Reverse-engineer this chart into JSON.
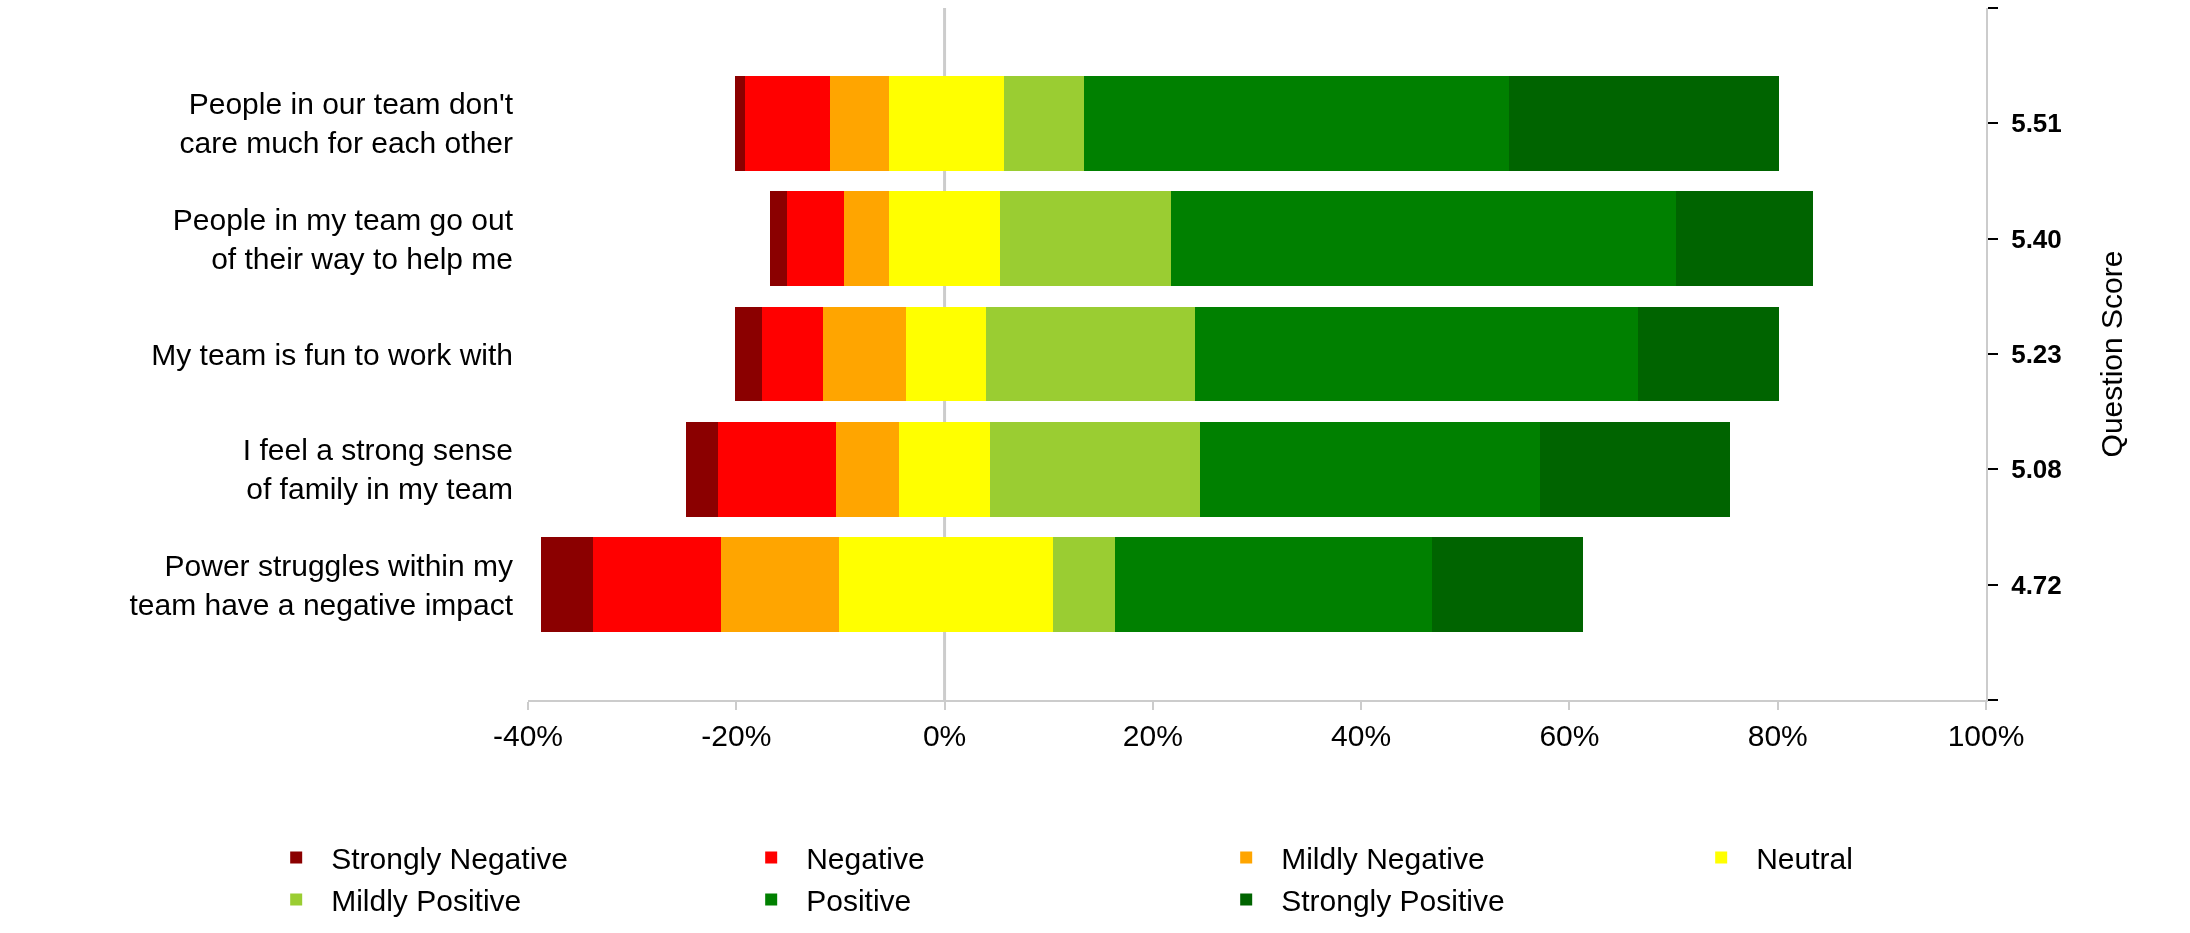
{
  "chart_data": {
    "type": "bar",
    "orientation": "horizontal",
    "categories": [
      "People in our team don't care much for each other",
      "People in my team go out of their way to help me",
      "My team is fun to work with",
      "I feel a strong sense of family in my team",
      "Power struggles within my team have a negative impact"
    ],
    "series": [
      {
        "name": "Strongly Negative",
        "color": "#8b0000",
        "base": [
          -20.1,
          -16.8,
          -20.1,
          -24.8,
          -38.8
        ],
        "values": [
          0.9,
          1.7,
          2.6,
          3.0,
          5.0
        ]
      },
      {
        "name": "Negative",
        "color": "#ff0000",
        "base": [
          -19.2,
          -15.1,
          -17.5,
          -21.8,
          -33.8
        ],
        "values": [
          8.2,
          5.4,
          5.8,
          11.4,
          12.3
        ]
      },
      {
        "name": "Mildly Negative",
        "color": "#ffa500",
        "base": [
          -11.0,
          -9.7,
          -11.7,
          -10.4,
          -21.5
        ],
        "values": [
          5.7,
          4.4,
          8.0,
          6.0,
          11.4
        ]
      },
      {
        "name": "Neutral",
        "color": "#ffff00",
        "base": [
          -5.3,
          -5.3,
          -3.7,
          -4.4,
          -10.1
        ],
        "values": [
          11.0,
          10.6,
          7.7,
          8.8,
          20.5
        ]
      },
      {
        "name": "Mildly Positive",
        "color": "#9acd32",
        "base": [
          5.7,
          5.3,
          4.0,
          4.4,
          10.4
        ],
        "values": [
          7.7,
          16.4,
          20.0,
          20.1,
          6.0
        ]
      },
      {
        "name": "Positive",
        "color": "#008000",
        "base": [
          13.4,
          21.7,
          24.0,
          24.5,
          16.4
        ],
        "values": [
          40.8,
          48.5,
          42.6,
          32.7,
          30.4
        ]
      },
      {
        "name": "Strongly Positive",
        "color": "#006400",
        "base": [
          54.2,
          70.2,
          66.6,
          57.2,
          46.8
        ],
        "values": [
          25.9,
          13.2,
          13.5,
          18.2,
          14.5
        ]
      }
    ],
    "xlim": [
      -40,
      100
    ],
    "xticks": [
      {
        "value": -40,
        "label": "-40%"
      },
      {
        "value": -20,
        "label": "-20%"
      },
      {
        "value": 0,
        "label": "0%"
      },
      {
        "value": 20,
        "label": "20%"
      },
      {
        "value": 40,
        "label": "40%"
      },
      {
        "value": 60,
        "label": "60%"
      },
      {
        "value": 80,
        "label": "80%"
      },
      {
        "value": 100,
        "label": "100%"
      }
    ],
    "ref_lines": [
      {
        "axis": "x",
        "value": 0,
        "color": "#cccccc"
      }
    ],
    "y2label": "Question Score",
    "annotations": [
      "5.51",
      "5.40",
      "5.23",
      "5.08",
      "4.72"
    ],
    "grid": false,
    "legend": "bottom"
  }
}
